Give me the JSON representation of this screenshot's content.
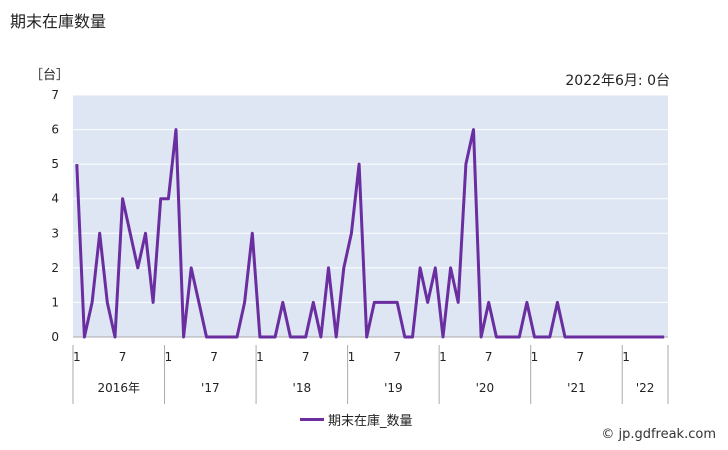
{
  "header": {
    "title": "期末在庫数量",
    "unit": "［台］",
    "latest_note": "2022年6月: 0台",
    "credit": "© jp.gdfreak.com"
  },
  "colors": {
    "plot_bg": "#dde6f2",
    "line": "#6a2ea0",
    "grid": "#ffffff"
  },
  "chart_data": {
    "type": "line",
    "ylim": [
      0,
      7
    ],
    "y_ticks": [
      "0",
      "1",
      "2",
      "3",
      "4",
      "5",
      "6",
      "7"
    ],
    "month_ticks": [
      "1",
      "7",
      "1",
      "7",
      "1",
      "7",
      "1",
      "7",
      "1",
      "7",
      "1",
      "7",
      "1"
    ],
    "year_labels": [
      "2016年",
      "'17",
      "'18",
      "'19",
      "'20",
      "'21",
      "'22"
    ],
    "series": [
      {
        "name": "期末在庫_数量",
        "x_start": "2016-01",
        "values": [
          5,
          0,
          1,
          3,
          1,
          0,
          4,
          3,
          2,
          3,
          1,
          4,
          4,
          6,
          0,
          2,
          1,
          0,
          0,
          0,
          0,
          0,
          1,
          3,
          0,
          0,
          0,
          1,
          0,
          0,
          0,
          1,
          0,
          2,
          0,
          2,
          3,
          5,
          0,
          1,
          1,
          1,
          1,
          0,
          0,
          2,
          1,
          2,
          0,
          2,
          1,
          5,
          6,
          0,
          1,
          0,
          0,
          0,
          0,
          1,
          0,
          0,
          0,
          1,
          0,
          0,
          0,
          0,
          0,
          0,
          0,
          0,
          0,
          0,
          0,
          0,
          0,
          0
        ]
      }
    ]
  }
}
